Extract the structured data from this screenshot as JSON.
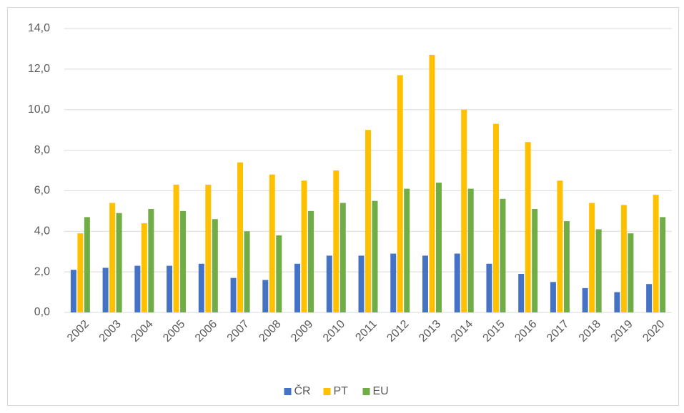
{
  "chart_data": {
    "type": "bar",
    "categories": [
      "2002",
      "2003",
      "2004",
      "2005",
      "2006",
      "2007",
      "2008",
      "2009",
      "2010",
      "2011",
      "2012",
      "2013",
      "2014",
      "2015",
      "2016",
      "2017",
      "2018",
      "2019",
      "2020"
    ],
    "series": [
      {
        "name": "ČR",
        "color": "#4472c4",
        "values": [
          2.1,
          2.2,
          2.3,
          2.3,
          2.4,
          1.7,
          1.6,
          2.4,
          2.8,
          2.8,
          2.9,
          2.8,
          2.9,
          2.4,
          1.9,
          1.5,
          1.2,
          1.0,
          1.4
        ]
      },
      {
        "name": "PT",
        "color": "#ffc000",
        "values": [
          3.9,
          5.4,
          4.4,
          6.3,
          6.3,
          7.4,
          6.8,
          6.5,
          7.0,
          9.0,
          11.7,
          12.7,
          10.0,
          9.3,
          8.4,
          6.5,
          5.4,
          5.3,
          5.8
        ]
      },
      {
        "name": "EU",
        "color": "#70ad47",
        "values": [
          4.7,
          4.9,
          5.1,
          5.0,
          4.6,
          4.0,
          3.8,
          5.0,
          5.4,
          5.5,
          6.1,
          6.4,
          6.1,
          5.6,
          5.1,
          4.5,
          4.1,
          3.9,
          4.7
        ]
      }
    ],
    "ylim": [
      0,
      14
    ],
    "yticks": [
      {
        "value": 0,
        "label": "0,0"
      },
      {
        "value": 2,
        "label": "2,0"
      },
      {
        "value": 4,
        "label": "4,0"
      },
      {
        "value": 6,
        "label": "6,0"
      },
      {
        "value": 8,
        "label": "8,0"
      },
      {
        "value": 10,
        "label": "10,0"
      },
      {
        "value": 12,
        "label": "12,0"
      },
      {
        "value": 14,
        "label": "14,0"
      }
    ],
    "grid": true,
    "legend": "bottom"
  }
}
